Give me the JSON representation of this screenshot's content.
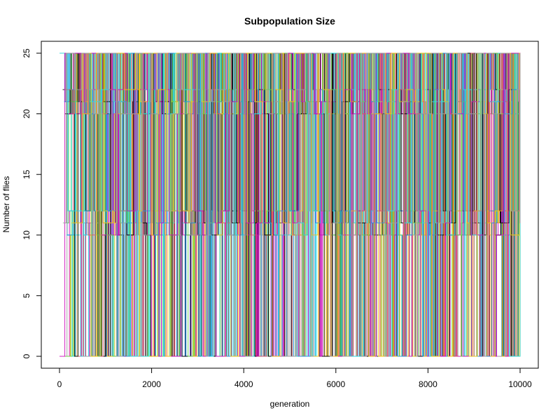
{
  "chart_data": {
    "type": "line",
    "title": "Subpopulation Size",
    "xlabel": "generation",
    "ylabel": "Number of flies",
    "xlim": [
      0,
      10000
    ],
    "ylim": [
      0,
      25
    ],
    "x_ticks": [
      "0",
      "2000",
      "4000",
      "6000",
      "8000",
      "10000"
    ],
    "y_ticks": [
      "0",
      "5",
      "10",
      "15",
      "20",
      "25"
    ],
    "grid": false,
    "legend": "none",
    "series_description": "Many overlapping colored subpopulation traces switching between 0, ~10-12, ~20 and 25 flies",
    "levels": [
      0,
      10,
      11,
      12,
      20,
      21,
      22,
      25
    ],
    "palette": [
      "#000000",
      "#df536b",
      "#61d04f",
      "#2297e6",
      "#28e2e5",
      "#cd0bbc",
      "#f5c710",
      "#9e9e9e"
    ]
  }
}
